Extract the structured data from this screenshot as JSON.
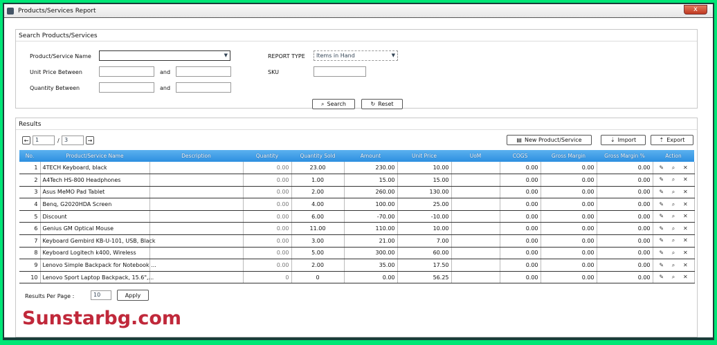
{
  "window": {
    "title": "Products/Services Report",
    "close": "x"
  },
  "search": {
    "title": "Search Products/Services",
    "name_label": "Product/Service Name",
    "name_value": "",
    "unit_price_label": "Unit Price Between",
    "and": "and",
    "quantity_label": "Quantity Between",
    "report_type_label": "REPORT TYPE",
    "report_type_value": "Items in Hand",
    "sku_label": "SKU",
    "search_btn": "Search",
    "reset_btn": "Reset"
  },
  "results": {
    "title": "Results",
    "page": "1",
    "pages": "3",
    "new_btn": "New Product/Service",
    "import_btn": "Import",
    "export_btn": "Export",
    "columns": [
      "No.",
      "Product/Service Name",
      "Description",
      "Quantity",
      "Quantity Sold",
      "Amount",
      "Unit Price",
      "UoM",
      "COGS",
      "Gross Margin",
      "Gross Margin %",
      "Action"
    ],
    "rows": [
      [
        "1",
        "4TECH Keyboard, black",
        "",
        "0.00",
        "23.00",
        "230.00",
        "10.00",
        "",
        "0.00",
        "0.00",
        "0.00"
      ],
      [
        "2",
        "A4Tech HS-800 Headphones",
        "",
        "0.00",
        "1.00",
        "15.00",
        "15.00",
        "",
        "0.00",
        "0.00",
        "0.00"
      ],
      [
        "3",
        "Asus MeMO Pad Tablet",
        "",
        "0.00",
        "2.00",
        "260.00",
        "130.00",
        "",
        "0.00",
        "0.00",
        "0.00"
      ],
      [
        "4",
        "Benq, G2020HDA Screen",
        "",
        "0.00",
        "4.00",
        "100.00",
        "25.00",
        "",
        "0.00",
        "0.00",
        "0.00"
      ],
      [
        "5",
        "Discount",
        "",
        "0.00",
        "6.00",
        "-70.00",
        "-10.00",
        "",
        "0.00",
        "0.00",
        "0.00"
      ],
      [
        "6",
        "Genius GM Optical Mouse",
        "",
        "0.00",
        "11.00",
        "110.00",
        "10.00",
        "",
        "0.00",
        "0.00",
        "0.00"
      ],
      [
        "7",
        "Keyboard Gembird KB-U-101, USB, Black",
        "",
        "0.00",
        "3.00",
        "21.00",
        "7.00",
        "",
        "0.00",
        "0.00",
        "0.00"
      ],
      [
        "8",
        "Keyboard Logitech k400, Wireless",
        "",
        "0.00",
        "5.00",
        "300.00",
        "60.00",
        "",
        "0.00",
        "0.00",
        "0.00"
      ],
      [
        "9",
        "Lenovo Simple Backpack for Notebook ...",
        "",
        "0.00",
        "2.00",
        "35.00",
        "17.50",
        "",
        "0.00",
        "0.00",
        "0.00"
      ],
      [
        "10",
        "Lenovo Sport Laptop Backpack, 15.6\",...",
        "",
        "0",
        "0",
        "0.00",
        "56.25",
        "",
        "0.00",
        "0.00",
        "0.00"
      ]
    ],
    "per_page_label": "Results Per Page :",
    "per_page_value": "10",
    "apply_btn": "Apply"
  },
  "watermark": "Sunstarbg.com",
  "colors": {
    "border": "#00e676",
    "header": "#2d8fe0",
    "watermark": "#c0283a"
  }
}
